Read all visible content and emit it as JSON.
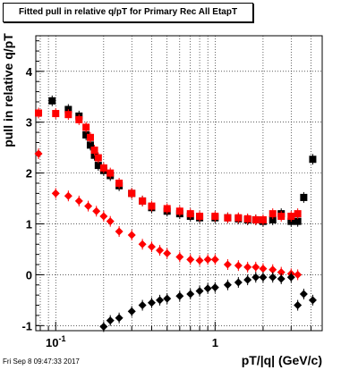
{
  "footer": {
    "timestamp": "Fri Sep  8 09:47:33 2017"
  },
  "colors": {
    "series_black": "#000000",
    "series_red": "#ff0000",
    "grid": "#000000",
    "background": "#ffffff"
  },
  "chart_data": {
    "type": "scatter",
    "title": "Fitted pull in relative q/pT for Primary Rec All EtapT",
    "xlabel": "pT/|q| (GeV/c)",
    "ylabel": "pull in relative q/pT",
    "x_scale": "log",
    "xlim": [
      0.075,
      4.7
    ],
    "ylim": [
      -1.1,
      4.7
    ],
    "grid": true,
    "x_tick_labels": [
      {
        "value": 0.1,
        "label": "10",
        "exponent": "-1"
      },
      {
        "value": 1,
        "label": "1"
      }
    ],
    "y_ticks": [
      -1,
      0,
      1,
      2,
      3,
      4
    ],
    "series": [
      {
        "marker": "square",
        "color": "#000000",
        "x": [
          0.095,
          0.12,
          0.14,
          0.155,
          0.165,
          0.175,
          0.185,
          0.2,
          0.22,
          0.25,
          0.3,
          0.35,
          0.4,
          0.5,
          0.6,
          0.7,
          0.8,
          1.0,
          1.2,
          1.4,
          1.6,
          1.8,
          2.0,
          2.3,
          2.6,
          3.0,
          3.3,
          3.6,
          4.1
        ],
        "y": [
          3.42,
          3.25,
          3.12,
          2.75,
          2.55,
          2.35,
          2.15,
          2.05,
          1.95,
          1.75,
          1.6,
          1.45,
          1.32,
          1.25,
          1.2,
          1.15,
          1.12,
          1.12,
          1.12,
          1.1,
          1.08,
          1.08,
          1.05,
          1.08,
          1.2,
          1.05,
          1.05,
          1.52,
          2.27
        ]
      },
      {
        "marker": "square",
        "color": "#ff0000",
        "x": [
          0.078,
          0.1,
          0.12,
          0.14,
          0.155,
          0.165,
          0.175,
          0.185,
          0.2,
          0.22,
          0.25,
          0.3,
          0.35,
          0.4,
          0.5,
          0.6,
          0.7,
          0.8,
          1.0,
          1.2,
          1.4,
          1.6,
          1.8,
          2.0,
          2.3,
          2.6,
          3.0,
          3.3
        ],
        "y": [
          3.18,
          3.17,
          3.15,
          3.05,
          2.9,
          2.7,
          2.45,
          2.3,
          2.1,
          2.0,
          1.8,
          1.6,
          1.45,
          1.35,
          1.3,
          1.25,
          1.2,
          1.15,
          1.15,
          1.12,
          1.12,
          1.1,
          1.08,
          1.08,
          1.2,
          1.15,
          1.15,
          1.2
        ]
      },
      {
        "marker": "diamond",
        "color": "#ff0000",
        "x": [
          0.078,
          0.1,
          0.12,
          0.14,
          0.16,
          0.18,
          0.2,
          0.22,
          0.25,
          0.3,
          0.35,
          0.4,
          0.45,
          0.5,
          0.6,
          0.7,
          0.8,
          0.9,
          1.0,
          1.2,
          1.4,
          1.6,
          1.8,
          2.0,
          2.3,
          2.6,
          3.0,
          3.3
        ],
        "y": [
          2.38,
          1.6,
          1.55,
          1.45,
          1.35,
          1.25,
          1.15,
          1.05,
          0.85,
          0.78,
          0.6,
          0.55,
          0.48,
          0.42,
          0.35,
          0.3,
          0.28,
          0.3,
          0.3,
          0.2,
          0.18,
          0.15,
          0.15,
          0.12,
          0.1,
          0.05,
          0.02,
          0.0
        ]
      },
      {
        "marker": "diamond",
        "color": "#000000",
        "x": [
          0.2,
          0.22,
          0.25,
          0.3,
          0.35,
          0.4,
          0.45,
          0.5,
          0.6,
          0.7,
          0.8,
          0.9,
          1.0,
          1.2,
          1.4,
          1.6,
          1.8,
          2.0,
          2.3,
          2.6,
          3.0,
          3.3,
          3.6,
          4.1
        ],
        "y": [
          -1.02,
          -0.9,
          -0.85,
          -0.72,
          -0.6,
          -0.55,
          -0.5,
          -0.47,
          -0.42,
          -0.38,
          -0.32,
          -0.27,
          -0.25,
          -0.2,
          -0.15,
          -0.1,
          -0.05,
          -0.05,
          -0.05,
          -0.08,
          -0.05,
          -0.6,
          -0.38,
          -0.5
        ]
      }
    ]
  }
}
